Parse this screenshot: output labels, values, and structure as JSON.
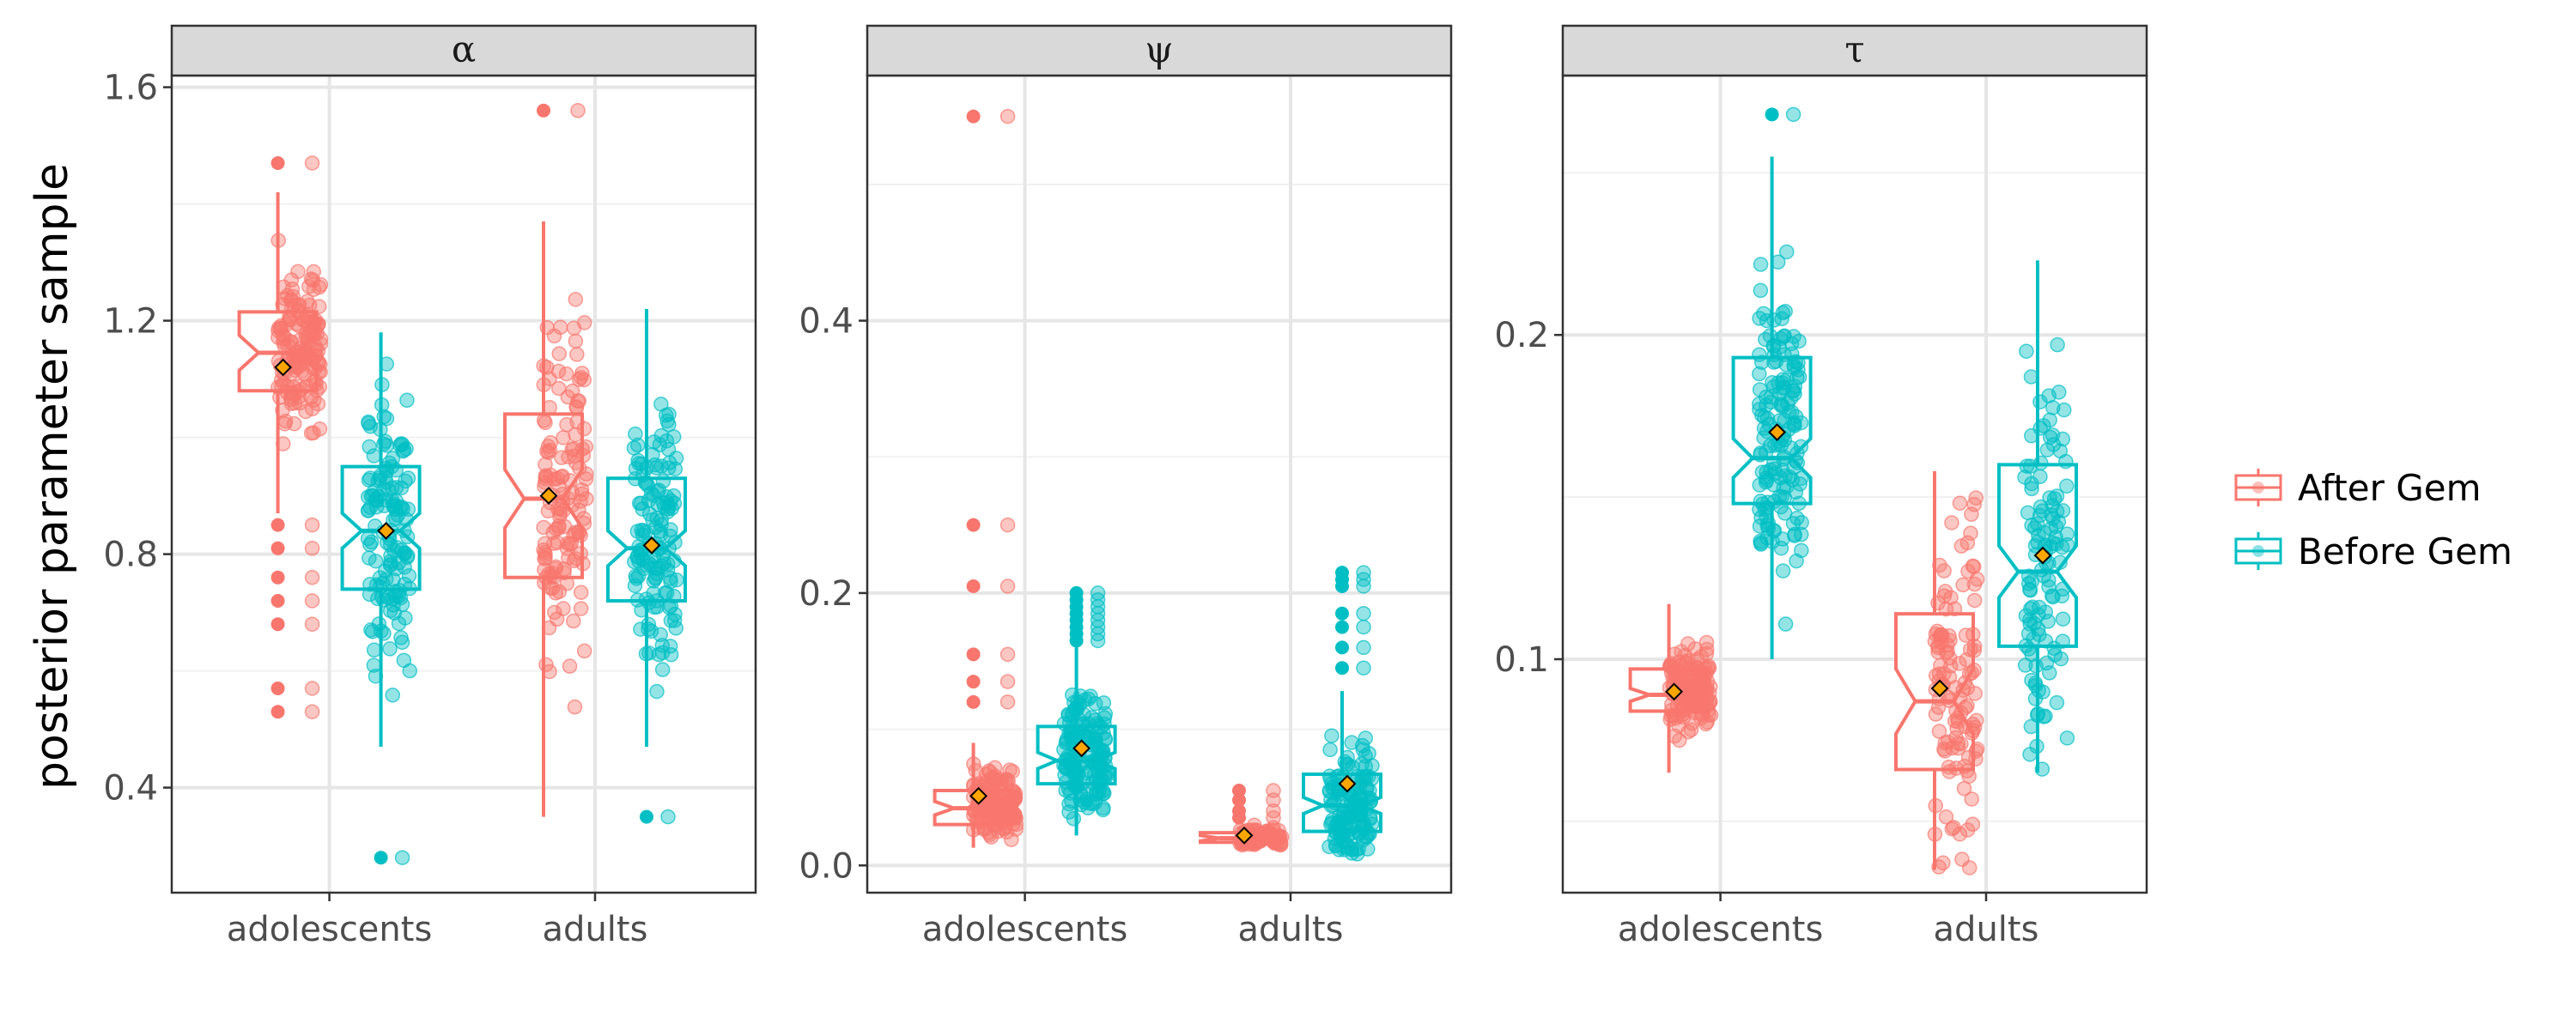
{
  "chart_data": {
    "type": "boxplot-jitter",
    "ylabel": "posterior parameter sample",
    "categories": [
      "adolescents",
      "adults"
    ],
    "legend": {
      "placement": "right",
      "entries": [
        {
          "name": "After Gem",
          "color": "#F8766D"
        },
        {
          "name": "Before Gem",
          "color": "#00BFC4"
        }
      ]
    },
    "mean_marker_color": "#FFA500",
    "panels": [
      {
        "title": "α",
        "ylim": [
          0.22,
          1.62
        ],
        "yticks": [
          0.4,
          0.8,
          1.2,
          1.6
        ],
        "ytick_labels": [
          "0.4",
          "0.8",
          "1.2",
          "1.6"
        ],
        "groups": [
          {
            "category": "adolescents",
            "series": "After Gem",
            "q1": 1.08,
            "median": 1.145,
            "q3": 1.215,
            "whisker_low": 0.87,
            "whisker_high": 1.42,
            "notch": 0.03,
            "mean": 1.12,
            "jitter_min": 0.76,
            "jitter_max": 1.46,
            "outliers": [
              0.53,
              0.57,
              0.68,
              0.72,
              0.76,
              0.81,
              0.85,
              1.47
            ],
            "n": 160
          },
          {
            "category": "adolescents",
            "series": "Before Gem",
            "q1": 0.74,
            "median": 0.84,
            "q3": 0.95,
            "whisker_low": 0.47,
            "whisker_high": 1.18,
            "notch": 0.03,
            "mean": 0.84,
            "jitter_min": 0.46,
            "jitter_max": 1.18,
            "outliers": [
              0.28
            ],
            "n": 140
          },
          {
            "category": "adults",
            "series": "After Gem",
            "q1": 0.76,
            "median": 0.895,
            "q3": 1.04,
            "whisker_low": 0.35,
            "whisker_high": 1.37,
            "notch": 0.05,
            "mean": 0.9,
            "jitter_min": 0.35,
            "jitter_max": 1.37,
            "outliers": [
              1.56
            ],
            "n": 140
          },
          {
            "category": "adults",
            "series": "Before Gem",
            "q1": 0.72,
            "median": 0.81,
            "q3": 0.93,
            "whisker_low": 0.47,
            "whisker_high": 1.22,
            "notch": 0.03,
            "mean": 0.815,
            "jitter_min": 0.47,
            "jitter_max": 1.22,
            "outliers": [
              0.35
            ],
            "n": 140
          }
        ]
      },
      {
        "title": "ψ",
        "ylim": [
          -0.02,
          0.58
        ],
        "yticks": [
          0.0,
          0.2,
          0.4
        ],
        "ytick_labels": [
          "0.0",
          "0.2",
          "0.4"
        ],
        "groups": [
          {
            "category": "adolescents",
            "series": "After Gem",
            "q1": 0.03,
            "median": 0.042,
            "q3": 0.055,
            "whisker_low": 0.013,
            "whisker_high": 0.09,
            "notch": 0.005,
            "mean": 0.051,
            "jitter_min": 0.013,
            "jitter_max": 0.1,
            "outliers": [
              0.12,
              0.135,
              0.155,
              0.205,
              0.25,
              0.55
            ],
            "n": 150
          },
          {
            "category": "adolescents",
            "series": "Before Gem",
            "q1": 0.06,
            "median": 0.077,
            "q3": 0.102,
            "whisker_low": 0.022,
            "whisker_high": 0.16,
            "notch": 0.006,
            "mean": 0.086,
            "jitter_min": 0.02,
            "jitter_max": 0.16,
            "outliers": [
              0.165,
              0.17,
              0.175,
              0.18,
              0.185,
              0.19,
              0.195,
              0.2
            ],
            "n": 160
          },
          {
            "category": "adults",
            "series": "After Gem",
            "q1": 0.017,
            "median": 0.02,
            "q3": 0.024,
            "whisker_low": 0.015,
            "whisker_high": 0.028,
            "notch": 0.002,
            "mean": 0.022,
            "jitter_min": 0.014,
            "jitter_max": 0.03,
            "outliers": [
              0.035,
              0.04,
              0.048,
              0.055
            ],
            "n": 90
          },
          {
            "category": "adults",
            "series": "Before Gem",
            "q1": 0.025,
            "median": 0.044,
            "q3": 0.067,
            "whisker_low": 0.008,
            "whisker_high": 0.128,
            "notch": 0.006,
            "mean": 0.06,
            "jitter_min": 0.008,
            "jitter_max": 0.13,
            "outliers": [
              0.145,
              0.16,
              0.175,
              0.185,
              0.205,
              0.21,
              0.215
            ],
            "n": 140
          }
        ]
      },
      {
        "title": "τ",
        "ylim": [
          0.028,
          0.28
        ],
        "yticks": [
          0.1,
          0.2
        ],
        "ytick_labels": [
          "0.1",
          "0.2"
        ],
        "groups": [
          {
            "category": "adolescents",
            "series": "After Gem",
            "q1": 0.084,
            "median": 0.089,
            "q3": 0.097,
            "whisker_low": 0.065,
            "whisker_high": 0.117,
            "notch": 0.002,
            "mean": 0.09,
            "jitter_min": 0.065,
            "jitter_max": 0.118,
            "outliers": [],
            "n": 150
          },
          {
            "category": "adolescents",
            "series": "Before Gem",
            "q1": 0.148,
            "median": 0.162,
            "q3": 0.193,
            "whisker_low": 0.1,
            "whisker_high": 0.255,
            "notch": 0.006,
            "mean": 0.17,
            "jitter_min": 0.1,
            "jitter_max": 0.255,
            "outliers": [
              0.268
            ],
            "n": 160
          },
          {
            "category": "adults",
            "series": "After Gem",
            "q1": 0.066,
            "median": 0.087,
            "q3": 0.114,
            "whisker_low": 0.035,
            "whisker_high": 0.158,
            "notch": 0.01,
            "mean": 0.091,
            "jitter_min": 0.035,
            "jitter_max": 0.16,
            "outliers": [],
            "n": 120
          },
          {
            "category": "adults",
            "series": "Before Gem",
            "q1": 0.104,
            "median": 0.127,
            "q3": 0.16,
            "whisker_low": 0.065,
            "whisker_high": 0.223,
            "notch": 0.008,
            "mean": 0.132,
            "jitter_min": 0.064,
            "jitter_max": 0.223,
            "outliers": [],
            "n": 120
          }
        ]
      }
    ]
  }
}
